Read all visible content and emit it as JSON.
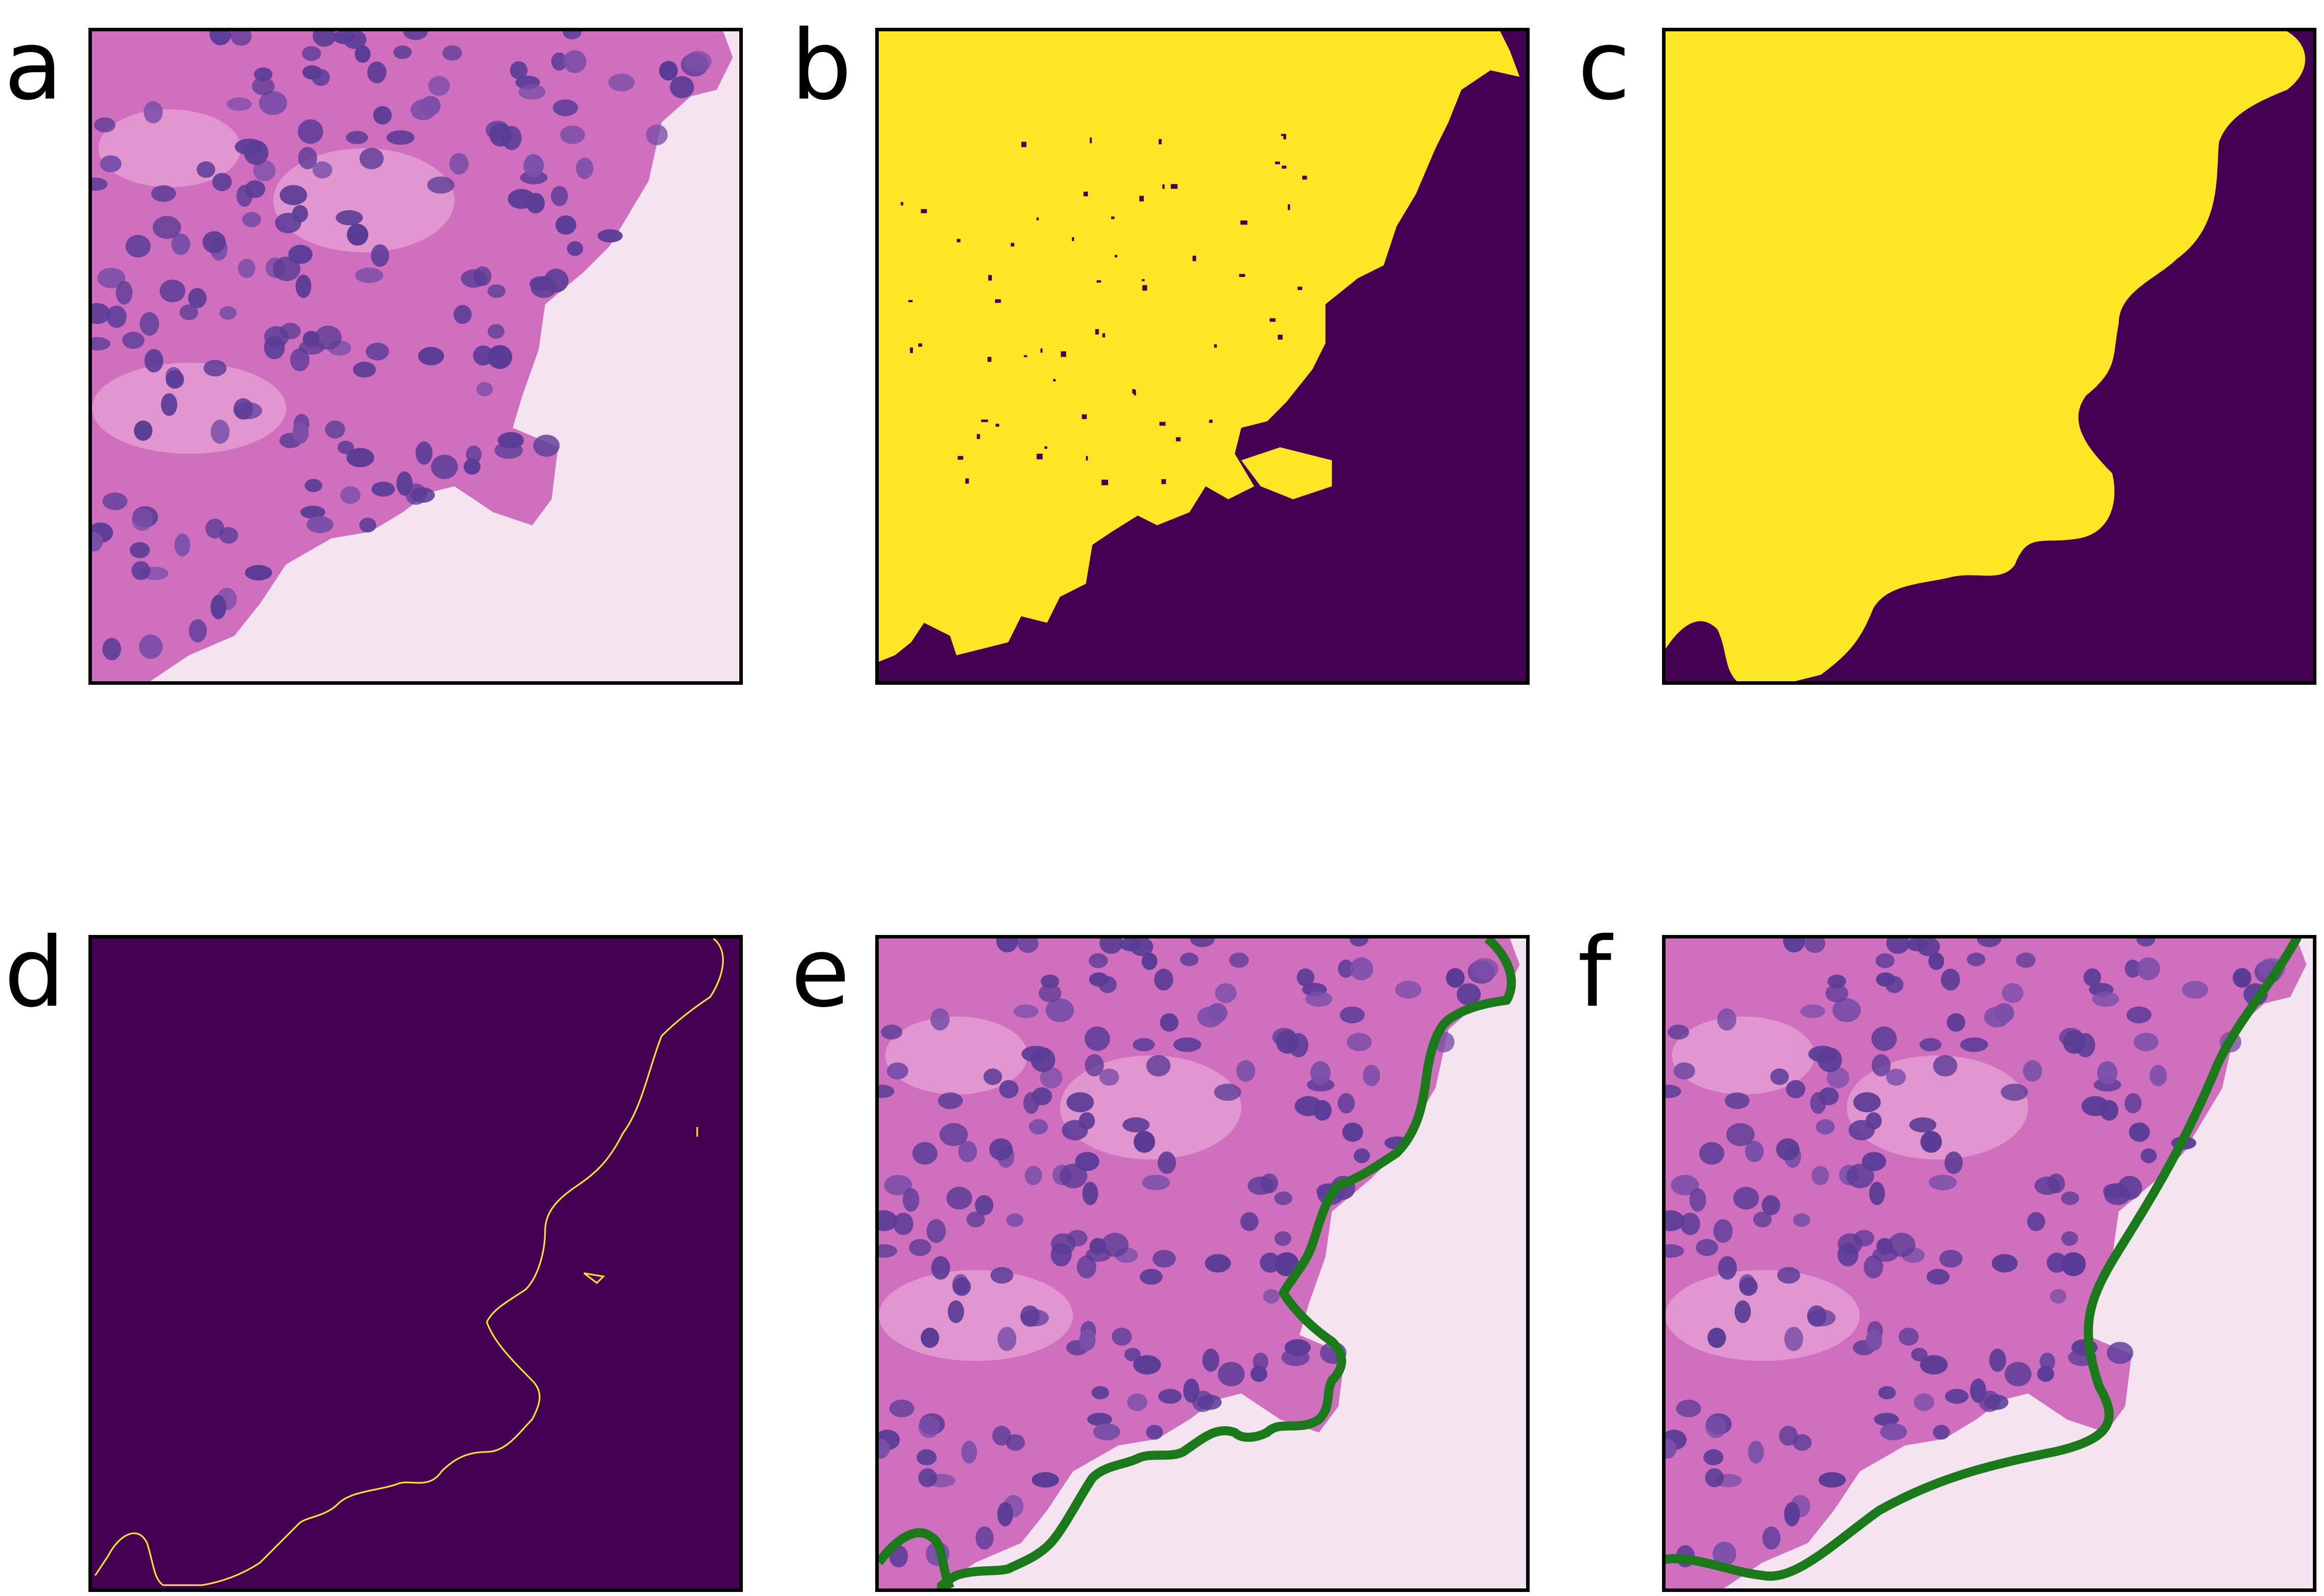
{
  "figure": {
    "panels": [
      {
        "id": "a",
        "label": "a",
        "content": "histology-image"
      },
      {
        "id": "b",
        "label": "b",
        "content": "binary-mask"
      },
      {
        "id": "c",
        "label": "c",
        "content": "smoothed-mask"
      },
      {
        "id": "d",
        "label": "d",
        "content": "boundary-contour"
      },
      {
        "id": "e",
        "label": "e",
        "content": "image-with-contour"
      },
      {
        "id": "f",
        "label": "f",
        "content": "image-with-smoothed-contour"
      }
    ]
  },
  "colors": {
    "mask_foreground": "#fde725",
    "mask_background": "#440154",
    "contour_thin": "#fde725",
    "contour_overlay": "#1a7a1a",
    "slide_background": "#f4e4ef",
    "tissue": "#cf6fbd",
    "nucleus": "#5a3c96"
  }
}
